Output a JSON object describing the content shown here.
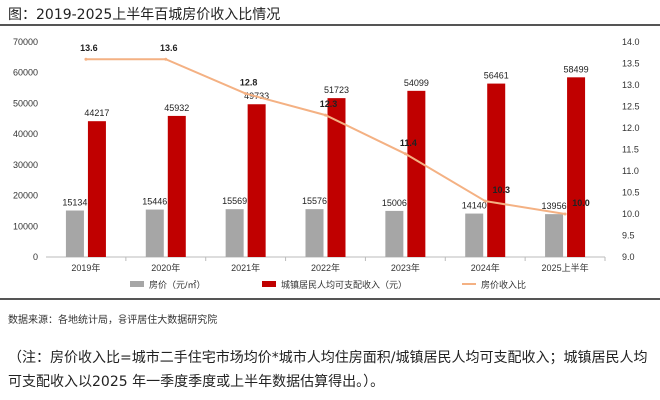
{
  "title": "图：2019-2025上半年百城房价收入比情况",
  "source": "数据来源：各地统计局，융评居住大数据研究院",
  "note": "（注：房价收入比=城市二手住宅市场均价*城市人均住房面积/城镇居民人均可支配收入；城镇居民人均可支配收入以2025 年一季度季度或上半年数据估算得出。）。",
  "chart_data": {
    "type": "bar+line",
    "categories": [
      "2019年",
      "2020年",
      "2021年",
      "2022年",
      "2023年",
      "2024年",
      "2025上半年"
    ],
    "series": [
      {
        "name": "房价（元/㎡）",
        "type": "bar",
        "axis": "left",
        "color": "#a6a6a6",
        "values": [
          15134,
          15446,
          15569,
          15576,
          15006,
          14140,
          13956
        ]
      },
      {
        "name": "城镇居民人均可支配收入（元）",
        "type": "bar",
        "axis": "left",
        "color": "#c00000",
        "values": [
          44217,
          45932,
          49733,
          51723,
          54099,
          56461,
          58499
        ]
      },
      {
        "name": "房价收入比",
        "type": "line",
        "axis": "right",
        "color": "#f4b183",
        "values": [
          13.6,
          13.6,
          12.8,
          12.3,
          11.4,
          10.3,
          10.0
        ]
      }
    ],
    "ylim_left": [
      0,
      70000
    ],
    "yticks_left": [
      "0",
      "10000",
      "20000",
      "30000",
      "40000",
      "50000",
      "60000",
      "70000"
    ],
    "ylim_right": [
      9.0,
      14.0
    ],
    "yticks_right": [
      "9.0",
      "9.5",
      "10.0",
      "10.5",
      "11.0",
      "11.5",
      "12.0",
      "12.5",
      "13.0",
      "13.5",
      "14.0"
    ],
    "legend": "bottom",
    "grid": false
  }
}
